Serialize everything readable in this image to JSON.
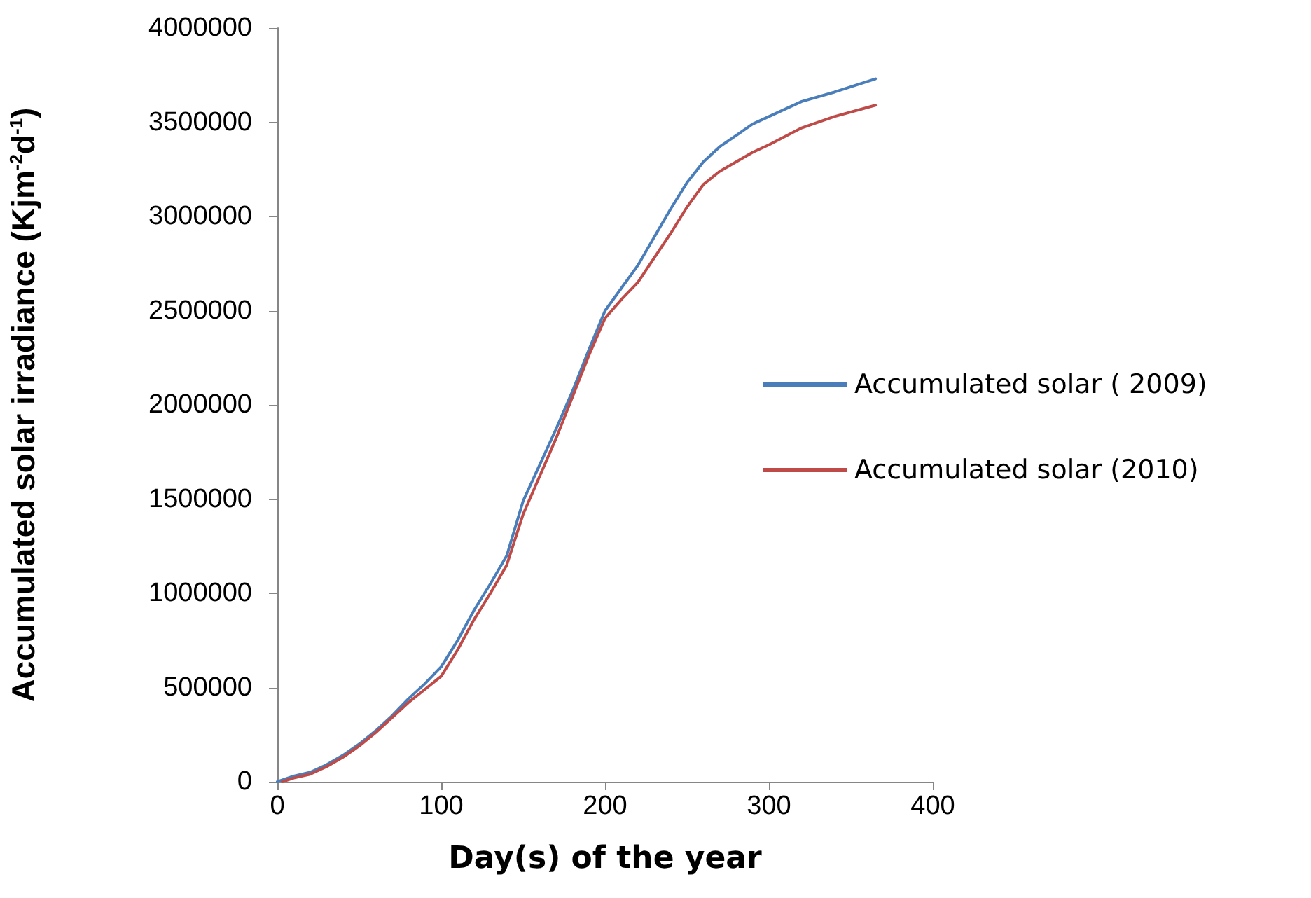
{
  "chart_data": {
    "type": "line",
    "xlabel": "Day(s) of the year",
    "ylabel": "Accumulated solar irradiance (Kjm$^{-2}$d$^{-1}$)",
    "xlim": [
      0,
      400
    ],
    "xticks": [
      0,
      100,
      200,
      300,
      400
    ],
    "ylim": [
      0,
      4000000
    ],
    "yticks": [
      0,
      500000,
      1000000,
      1500000,
      2000000,
      2500000,
      3000000,
      3500000,
      4000000
    ],
    "grid": false,
    "legend": "right",
    "marker": "none",
    "line_style": "solid",
    "series": [
      {
        "name": "Accumulated solar ( 2009)",
        "color": "#4a7ebb",
        "x": [
          0,
          10,
          20,
          30,
          40,
          50,
          60,
          70,
          80,
          90,
          100,
          110,
          120,
          130,
          140,
          150,
          160,
          170,
          180,
          190,
          200,
          210,
          220,
          230,
          240,
          250,
          260,
          270,
          280,
          290,
          300,
          320,
          340,
          365
        ],
        "values": [
          0,
          30000,
          50000,
          90000,
          140000,
          200000,
          270000,
          350000,
          440000,
          520000,
          610000,
          750000,
          910000,
          1050000,
          1200000,
          1490000,
          1680000,
          1870000,
          2070000,
          2290000,
          2500000,
          2620000,
          2740000,
          2890000,
          3040000,
          3180000,
          3290000,
          3370000,
          3430000,
          3490000,
          3530000,
          3610000,
          3660000,
          3730000
        ]
      },
      {
        "name": "Accumulated solar (2010)",
        "color": "#be4b48",
        "x": [
          3,
          10,
          20,
          30,
          40,
          50,
          60,
          70,
          80,
          90,
          100,
          110,
          120,
          130,
          140,
          150,
          160,
          170,
          180,
          190,
          200,
          210,
          220,
          230,
          240,
          250,
          260,
          270,
          280,
          290,
          300,
          320,
          340,
          365
        ],
        "values": [
          0,
          20000,
          40000,
          80000,
          130000,
          190000,
          260000,
          340000,
          420000,
          490000,
          560000,
          700000,
          860000,
          1000000,
          1150000,
          1420000,
          1620000,
          1820000,
          2040000,
          2260000,
          2460000,
          2560000,
          2650000,
          2780000,
          2910000,
          3050000,
          3170000,
          3240000,
          3290000,
          3340000,
          3380000,
          3470000,
          3530000,
          3590000
        ]
      }
    ]
  }
}
